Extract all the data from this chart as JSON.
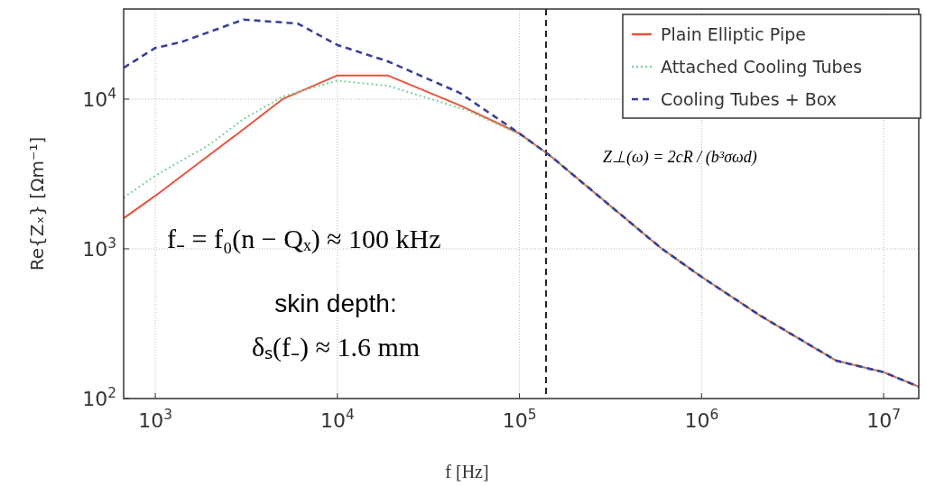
{
  "chart_data": {
    "type": "line",
    "xlabel": "f [Hz]",
    "ylabel": "Re{Zₓ} [Ωm⁻¹]",
    "log": "xy",
    "xlim": [
      670,
      15600000
    ],
    "ylim": [
      100,
      40000
    ],
    "xticks": [
      {
        "value": 1000,
        "label": "10$^{3}$"
      },
      {
        "value": 10000,
        "label": "10$^{4}$"
      },
      {
        "value": 100000,
        "label": "10$^{5}$"
      },
      {
        "value": 1000000,
        "label": "10$^{6}$"
      },
      {
        "value": 10000000,
        "label": "10$^{7}$"
      }
    ],
    "yticks": [
      {
        "value": 100,
        "label": "10$^{2}$"
      },
      {
        "value": 1000,
        "label": "10$^{3}$"
      },
      {
        "value": 10000,
        "label": "10$^{4}$"
      }
    ],
    "grid": true,
    "legend": "top right",
    "marker": "none",
    "ref_lines": [
      {
        "axis": "x",
        "value": 140000,
        "color": "#222222",
        "line_style": "dashed"
      }
    ],
    "annotations": [
      "f₋ = f₀(n − Qₓ) ≈ 100 kHz",
      "skin depth:",
      "δₛ(f₋) ≈ 1.6 mm",
      "Z⊥(ω) = 2cR / (b³σωd)"
    ],
    "series": [
      {
        "name": "Plain Elliptic Pipe",
        "color": "#e8533a",
        "line_style": "solid",
        "x": [
          670,
          1000,
          2000,
          3000,
          5000,
          10000,
          18900,
          47100,
          100000,
          147000,
          600000,
          1000000,
          2100000,
          5500000,
          10000000,
          15600000
        ],
        "values": [
          1600,
          2260,
          4270,
          6200,
          10000,
          14400,
          14400,
          9080,
          5900,
          4200,
          1010,
          650,
          358,
          179,
          150,
          120
        ]
      },
      {
        "name": "Attached Cooling Tubes",
        "color": "#7fcf9a",
        "line_style": "dotted",
        "x": [
          670,
          1000,
          2000,
          3000,
          5000,
          10000,
          18900,
          52000,
          100000,
          147000,
          600000,
          1000000,
          2100000,
          5500000,
          10000000,
          15600000
        ],
        "values": [
          2200,
          3080,
          5000,
          7260,
          10400,
          13300,
          12300,
          8400,
          5800,
          4200,
          1010,
          650,
          358,
          179,
          150,
          120
        ]
      },
      {
        "name": "Cooling Tubes + Box",
        "color": "#3a3f9a",
        "line_style": "dashed",
        "x": [
          670,
          1000,
          1380,
          3050,
          6050,
          10000,
          18900,
          47100,
          100000,
          147000,
          600000,
          1000000,
          2100000,
          5500000,
          10000000,
          15600000
        ],
        "values": [
          16200,
          22000,
          24000,
          34000,
          32000,
          23000,
          17900,
          11000,
          5900,
          4200,
          1010,
          650,
          358,
          179,
          150,
          120
        ]
      }
    ]
  }
}
